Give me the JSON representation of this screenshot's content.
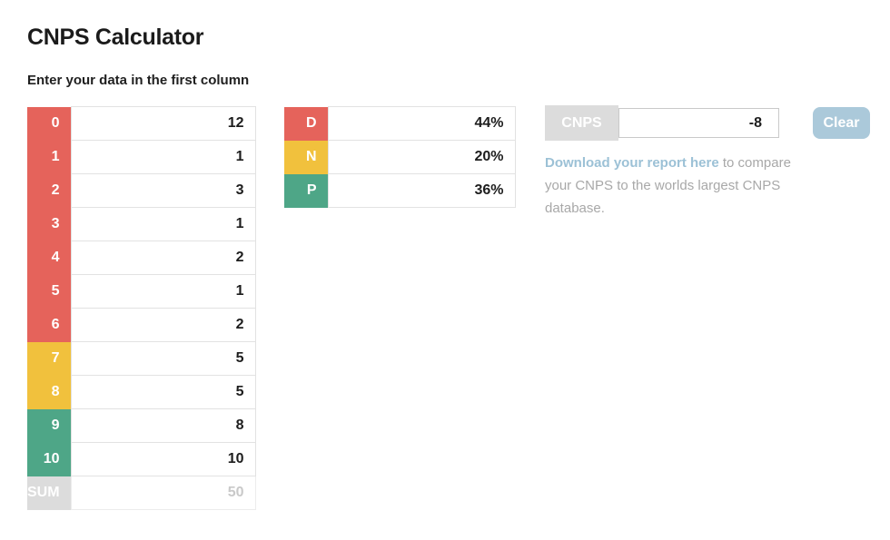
{
  "page": {
    "title": "CNPS Calculator",
    "subtitle": "Enter your data in the first column"
  },
  "colors": {
    "red": "#e5635b",
    "yellow": "#f1c13d",
    "green": "#4ea687",
    "gray": "#dcdcdc",
    "button_blue": "#abc9da",
    "link_blue": "#9cc1d6"
  },
  "score_table": {
    "rows": [
      {
        "label": "0",
        "value": "12",
        "color": "red"
      },
      {
        "label": "1",
        "value": "1",
        "color": "red"
      },
      {
        "label": "2",
        "value": "3",
        "color": "red"
      },
      {
        "label": "3",
        "value": "1",
        "color": "red"
      },
      {
        "label": "4",
        "value": "2",
        "color": "red"
      },
      {
        "label": "5",
        "value": "1",
        "color": "red"
      },
      {
        "label": "6",
        "value": "2",
        "color": "red"
      },
      {
        "label": "7",
        "value": "5",
        "color": "yellow"
      },
      {
        "label": "8",
        "value": "5",
        "color": "yellow"
      },
      {
        "label": "9",
        "value": "8",
        "color": "green"
      },
      {
        "label": "10",
        "value": "10",
        "color": "green"
      },
      {
        "label": "SUM",
        "value": "50",
        "color": "gray"
      }
    ]
  },
  "dnp_table": {
    "rows": [
      {
        "label": "D",
        "value": "44%",
        "color": "red"
      },
      {
        "label": "N",
        "value": "20%",
        "color": "yellow"
      },
      {
        "label": "P",
        "value": "36%",
        "color": "green"
      }
    ]
  },
  "result": {
    "label": "CNPS",
    "value": "-8"
  },
  "actions": {
    "clear_label": "Clear"
  },
  "report": {
    "link_text": "Download your report here",
    "rest_text": " to compare your CNPS to the worlds largest CNPS database."
  }
}
